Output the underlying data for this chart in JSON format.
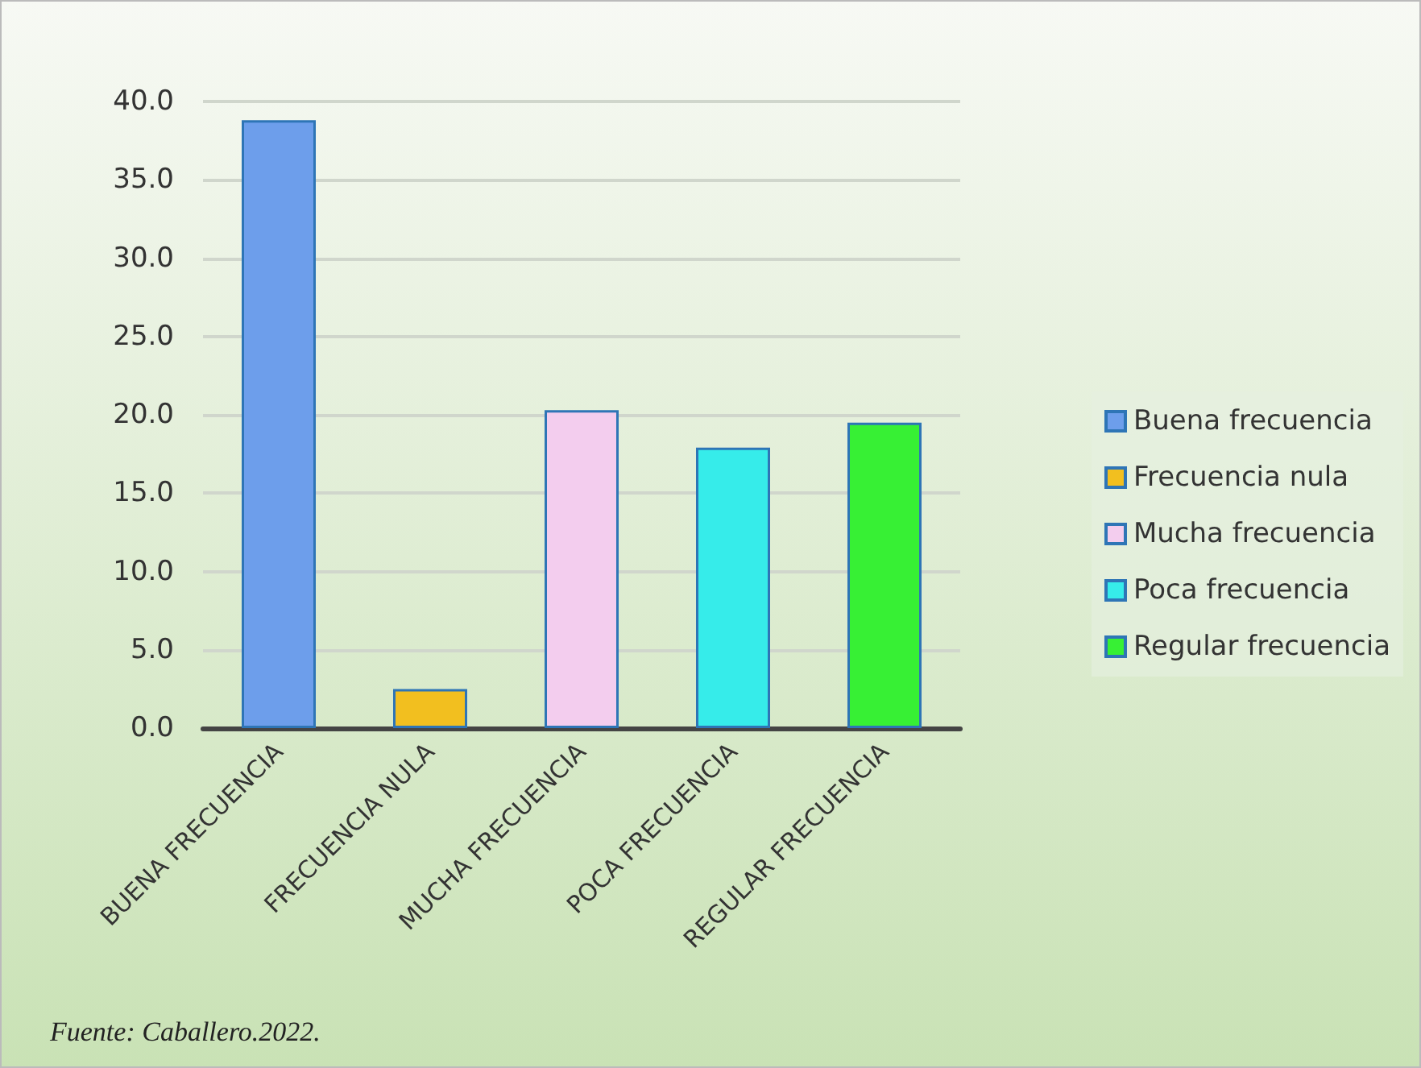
{
  "chart_data": {
    "type": "bar",
    "categories": [
      "BUENA FRECUENCIA",
      "FRECUENCIA NULA",
      "MUCHA FRECUENCIA",
      "POCA FRECUENCIA",
      "REGULAR FRECUENCIA"
    ],
    "series": [
      {
        "name": "Buena frecuencia",
        "color": "#6d9eeb",
        "values": [
          38.8,
          null,
          null,
          null,
          null
        ]
      },
      {
        "name": "Frecuencia nula",
        "color": "#f2bf1f",
        "values": [
          null,
          2.5,
          null,
          null,
          null
        ]
      },
      {
        "name": "Mucha frecuencia",
        "color": "#f3cdee",
        "values": [
          null,
          null,
          20.3,
          null,
          null
        ]
      },
      {
        "name": "Poca frecuencia",
        "color": "#36ecea",
        "values": [
          null,
          null,
          null,
          17.9,
          null
        ]
      },
      {
        "name": "Regular frecuencia",
        "color": "#37f034",
        "values": [
          null,
          null,
          null,
          null,
          19.5
        ]
      }
    ],
    "ylim": [
      0,
      40
    ],
    "yticks": [
      {
        "value": 0,
        "label": "0.0"
      },
      {
        "value": 5,
        "label": "5.0"
      },
      {
        "value": 10,
        "label": "10.0"
      },
      {
        "value": 15,
        "label": "15.0"
      },
      {
        "value": 20,
        "label": "20.0"
      },
      {
        "value": 25,
        "label": "25.0"
      },
      {
        "value": 30,
        "label": "30.0"
      },
      {
        "value": 35,
        "label": "35.0"
      },
      {
        "value": 40,
        "label": "40.0"
      }
    ],
    "grid": "y",
    "legend": "right",
    "annotations": [
      "Fuente: Caballero.2022."
    ]
  }
}
